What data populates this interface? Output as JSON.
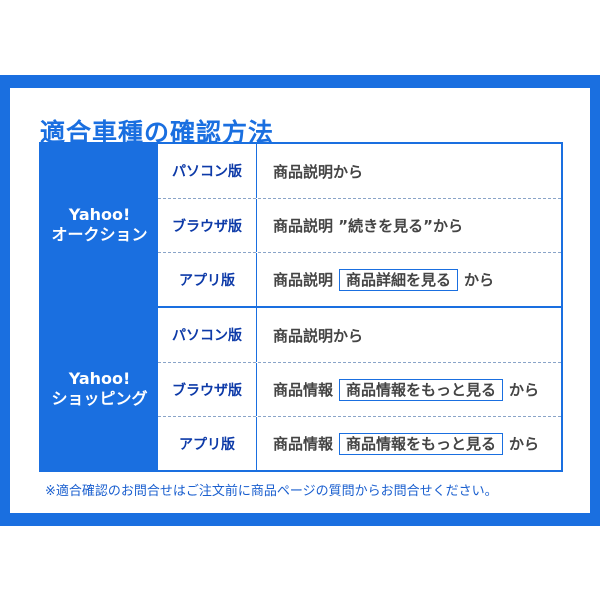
{
  "title": "適合車種の確認方法",
  "groups": [
    {
      "site": [
        "Yahoo!",
        "オークション"
      ],
      "rows": [
        {
          "version": "パソコン版",
          "prefix": "商品説明から",
          "boxed": "",
          "suffix": ""
        },
        {
          "version": "ブラウザ版",
          "prefix": "商品説明 ”続きを見る”から",
          "boxed": "",
          "suffix": ""
        },
        {
          "version": "アプリ版",
          "prefix": "商品説明",
          "boxed": "商品詳細を見る",
          "suffix": "から"
        }
      ]
    },
    {
      "site": [
        "Yahoo!",
        "ショッピング"
      ],
      "rows": [
        {
          "version": "パソコン版",
          "prefix": "商品説明から",
          "boxed": "",
          "suffix": ""
        },
        {
          "version": "ブラウザ版",
          "prefix": "商品情報",
          "boxed": "商品情報をもっと見る",
          "suffix": "から"
        },
        {
          "version": "アプリ版",
          "prefix": "商品情報",
          "boxed": "商品情報をもっと見る",
          "suffix": "から"
        }
      ]
    }
  ],
  "note": "※適合確認のお問合せはご注文前に商品ページの質問からお問合せください。",
  "colors": {
    "brand": "#1a6fe0",
    "version_text": "#0d3aa8"
  }
}
